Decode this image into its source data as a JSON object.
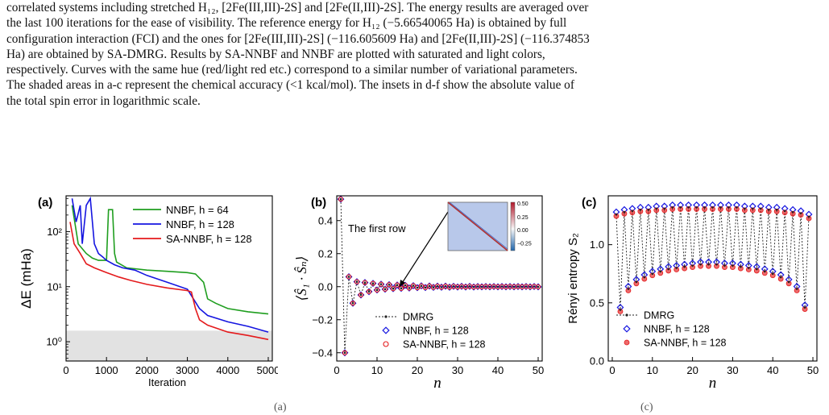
{
  "caption": {
    "lines": [
      "correlated systems including stretched H₁₂, [2Fe(III,III)-2S] and [2Fe(II,III)-2S]. The energy results are averaged over",
      "the last 100 iterations for the ease of visibility.  The reference energy for H₁₂ (−5.66540065 Ha) is obtained by full",
      "configuration interaction (FCI) and the ones for [2Fe(III,III)-2S] (−116.605609 Ha) and [2Fe(II,III)-2S] (−116.374853",
      "Ha) are obtained by SA-DMRG. Results by SA-NNBF and NNBF are plotted with saturated and light colors,",
      "respectively. Curves with the same hue (red/light red etc.) correspond to a similar number of variational parameters.",
      "The shaded areas in a-c represent the chemical accuracy (<1 kcal/mol). The insets in d-f show the absolute value of",
      "the total spin error in logarithmic scale."
    ]
  },
  "bottom_fragments": [
    "(a)",
    "(c)"
  ],
  "colors": {
    "nnbf64": "#1f9e1f",
    "nnbf128": "#1515e0",
    "sannbf128": "#e41a1c",
    "shade": "#e2e2e2",
    "dmrg": "#222222"
  },
  "chart_data": [
    {
      "panel": "(a)",
      "type": "line",
      "xlabel": "Iteration",
      "ylabel": "ΔE (mHa)",
      "xlim": [
        0,
        5100
      ],
      "ylim_log10": [
        -0.35,
        2.65
      ],
      "yscale": "log",
      "xticks": [
        "0",
        "1000",
        "2000",
        "3000",
        "4000",
        "5000"
      ],
      "xtick_values": [
        0,
        1000,
        2000,
        3000,
        4000,
        5000
      ],
      "yticks": [
        "10⁰",
        "10¹",
        "10²"
      ],
      "ytick_values": [
        1,
        10,
        100
      ],
      "shaded_max": 1.59,
      "legend": [
        "NNBF, h = 64",
        "NNBF, h = 128",
        "SA-NNBF, h = 128"
      ],
      "series": [
        {
          "name": "NNBF, h = 64",
          "color": "#1f9e1f",
          "x": [
            150,
            300,
            500,
            650,
            800,
            900,
            1000,
            1050,
            1150,
            1200,
            1250,
            1500,
            2000,
            2500,
            3000,
            3200,
            3400,
            3500,
            3700,
            4000,
            4500,
            5000
          ],
          "y": [
            300,
            60,
            40,
            33,
            30,
            30,
            30,
            250,
            250,
            40,
            28,
            22,
            20,
            19,
            18,
            17,
            12,
            6,
            5,
            4,
            3.5,
            3.2
          ]
        },
        {
          "name": "NNBF, h = 128",
          "color": "#1515e0",
          "x": [
            150,
            250,
            350,
            400,
            500,
            600,
            700,
            800,
            900,
            1000,
            1200,
            1400,
            1700,
            2000,
            2500,
            3000,
            3300,
            3500,
            4000,
            4500,
            5000
          ],
          "y": [
            400,
            150,
            300,
            60,
            300,
            400,
            60,
            40,
            35,
            30,
            25,
            22,
            20,
            16,
            12,
            9,
            4,
            3,
            2.3,
            1.9,
            1.5
          ]
        },
        {
          "name": "SA-NNBF, h = 128",
          "color": "#e41a1c",
          "x": [
            100,
            200,
            350,
            500,
            700,
            1000,
            1300,
            1600,
            2000,
            2500,
            3000,
            3100,
            3200,
            3300,
            3500,
            4000,
            4500,
            5000
          ],
          "y": [
            150,
            60,
            40,
            26,
            22,
            18,
            15,
            13,
            11,
            9.5,
            8.5,
            8,
            4,
            2.5,
            2,
            1.5,
            1.3,
            1.1
          ]
        }
      ]
    },
    {
      "panel": "(b)",
      "type": "scatter",
      "xlabel": "n",
      "ylabel": "⟨Ŝ₁ · Ŝₙ⟩",
      "xlim": [
        0,
        51
      ],
      "ylim": [
        -0.45,
        0.55
      ],
      "xticks": [
        "0",
        "10",
        "20",
        "30",
        "40",
        "50"
      ],
      "xtick_values": [
        0,
        10,
        20,
        30,
        40,
        50
      ],
      "yticks": [
        "−0.4",
        "−0.2",
        "0.0",
        "0.2",
        "0.4"
      ],
      "ytick_values": [
        -0.4,
        -0.2,
        0.0,
        0.2,
        0.4
      ],
      "annotation": "The first row",
      "inset_colorbar_ticks": [
        "0.50",
        "0.25",
        "0.00",
        "−0.25"
      ],
      "legend": [
        "DMRG",
        "NNBF, h = 128",
        "SA-NNBF, h = 128"
      ],
      "x": [
        1,
        2,
        3,
        4,
        5,
        6,
        7,
        8,
        9,
        10,
        11,
        12,
        13,
        14,
        15,
        16,
        17,
        18,
        19,
        20,
        21,
        22,
        23,
        24,
        25,
        26,
        27,
        28,
        29,
        30,
        31,
        32,
        33,
        34,
        35,
        36,
        37,
        38,
        39,
        40,
        41,
        42,
        43,
        44,
        45,
        46,
        47,
        48,
        49,
        50
      ],
      "series": [
        {
          "name": "DMRG",
          "values": [
            0.53,
            -0.4,
            0.06,
            -0.1,
            0.03,
            -0.05,
            0.025,
            -0.03,
            0.02,
            -0.02,
            0.015,
            -0.015,
            0.012,
            -0.012,
            0.01,
            -0.01,
            0.008,
            -0.008,
            0.006,
            -0.006,
            0.005,
            -0.005,
            0.004,
            -0.004,
            0.003,
            -0.003,
            0.003,
            -0.003,
            0.002,
            -0.002,
            0.002,
            -0.002,
            0.002,
            -0.002,
            0.001,
            -0.001,
            0.001,
            -0.001,
            0.001,
            -0.001,
            0.001,
            -0.001,
            0.001,
            -0.001,
            0.001,
            -0.001,
            0.001,
            -0.001,
            0.001,
            -0.001
          ]
        }
      ]
    },
    {
      "panel": "(c)",
      "type": "scatter",
      "xlabel": "n",
      "ylabel": "Rényi entropy S₂",
      "xlim": [
        -1,
        51
      ],
      "ylim": [
        0.0,
        1.42
      ],
      "xticks": [
        "0",
        "10",
        "20",
        "30",
        "40",
        "50"
      ],
      "xtick_values": [
        0,
        10,
        20,
        30,
        40,
        50
      ],
      "yticks": [
        "0.0",
        "0.5",
        "1.0"
      ],
      "ytick_values": [
        0.0,
        0.5,
        1.0
      ],
      "legend": [
        "DMRG",
        "NNBF, h = 128",
        "SA-NNBF, h = 128"
      ],
      "x": [
        1,
        2,
        3,
        4,
        5,
        6,
        7,
        8,
        9,
        10,
        11,
        12,
        13,
        14,
        15,
        16,
        17,
        18,
        19,
        20,
        21,
        22,
        23,
        24,
        25,
        26,
        27,
        28,
        29,
        30,
        31,
        32,
        33,
        34,
        35,
        36,
        37,
        38,
        39,
        40,
        41,
        42,
        43,
        44,
        45,
        46,
        47,
        48,
        49
      ],
      "series": [
        {
          "name": "DMRG",
          "values": [
            1.26,
            0.44,
            1.28,
            0.62,
            1.29,
            0.68,
            1.3,
            0.72,
            1.3,
            0.75,
            1.31,
            0.77,
            1.31,
            0.79,
            1.32,
            0.8,
            1.32,
            0.81,
            1.32,
            0.82,
            1.32,
            0.83,
            1.32,
            0.83,
            1.32,
            0.83,
            1.32,
            0.82,
            1.32,
            0.82,
            1.32,
            0.81,
            1.31,
            0.8,
            1.31,
            0.79,
            1.31,
            0.77,
            1.3,
            0.75,
            1.3,
            0.72,
            1.29,
            0.68,
            1.28,
            0.62,
            1.27,
            0.46,
            1.24
          ]
        }
      ]
    }
  ]
}
